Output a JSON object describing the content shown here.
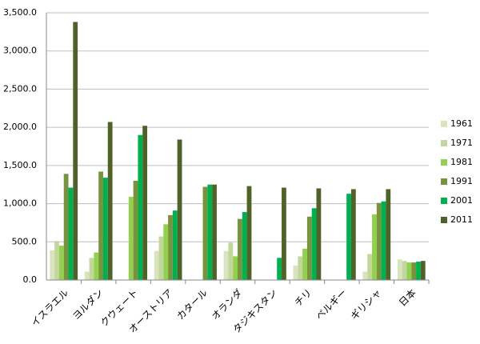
{
  "chart_data": {
    "type": "bar",
    "categories": [
      "イスラエル",
      "ヨルダン",
      "クウェート",
      "オーストリア",
      "カタール",
      "オランダ",
      "タジキスタン",
      "チリ",
      "ベルギー",
      "ギリシャ",
      "日本"
    ],
    "series": [
      {
        "name": "1961",
        "color": "#d7e4bd",
        "values": [
          390,
          110,
          null,
          380,
          null,
          380,
          null,
          190,
          null,
          110,
          270
        ]
      },
      {
        "name": "1971",
        "color": "#c3d69b",
        "values": [
          510,
          290,
          null,
          570,
          null,
          490,
          null,
          310,
          null,
          340,
          250
        ]
      },
      {
        "name": "1981",
        "color": "#92d050",
        "values": [
          450,
          360,
          1090,
          730,
          null,
          310,
          null,
          410,
          null,
          860,
          230
        ]
      },
      {
        "name": "1991",
        "color": "#77933c",
        "values": [
          1390,
          1420,
          1300,
          850,
          1220,
          800,
          null,
          830,
          null,
          1010,
          230
        ]
      },
      {
        "name": "2001",
        "color": "#00b050",
        "values": [
          1210,
          1340,
          1900,
          910,
          1250,
          890,
          290,
          940,
          1130,
          1030,
          240
        ]
      },
      {
        "name": "2011",
        "color": "#4f6228",
        "values": [
          3380,
          2070,
          2020,
          1840,
          1250,
          1230,
          1210,
          1200,
          1190,
          1190,
          250
        ]
      }
    ],
    "ylim": [
      0,
      3500
    ],
    "yticks": [
      {
        "value": 0,
        "label": "0.0"
      },
      {
        "value": 500,
        "label": "500.0"
      },
      {
        "value": 1000,
        "label": "1,000.0"
      },
      {
        "value": 1500,
        "label": "1,500.0"
      },
      {
        "value": 2000,
        "label": "2,000.0"
      },
      {
        "value": 2500,
        "label": "2,500.0"
      },
      {
        "value": 3000,
        "label": "3,000.0"
      },
      {
        "value": 3500,
        "label": "3,500.0"
      }
    ],
    "grid": true,
    "legend": "right"
  }
}
